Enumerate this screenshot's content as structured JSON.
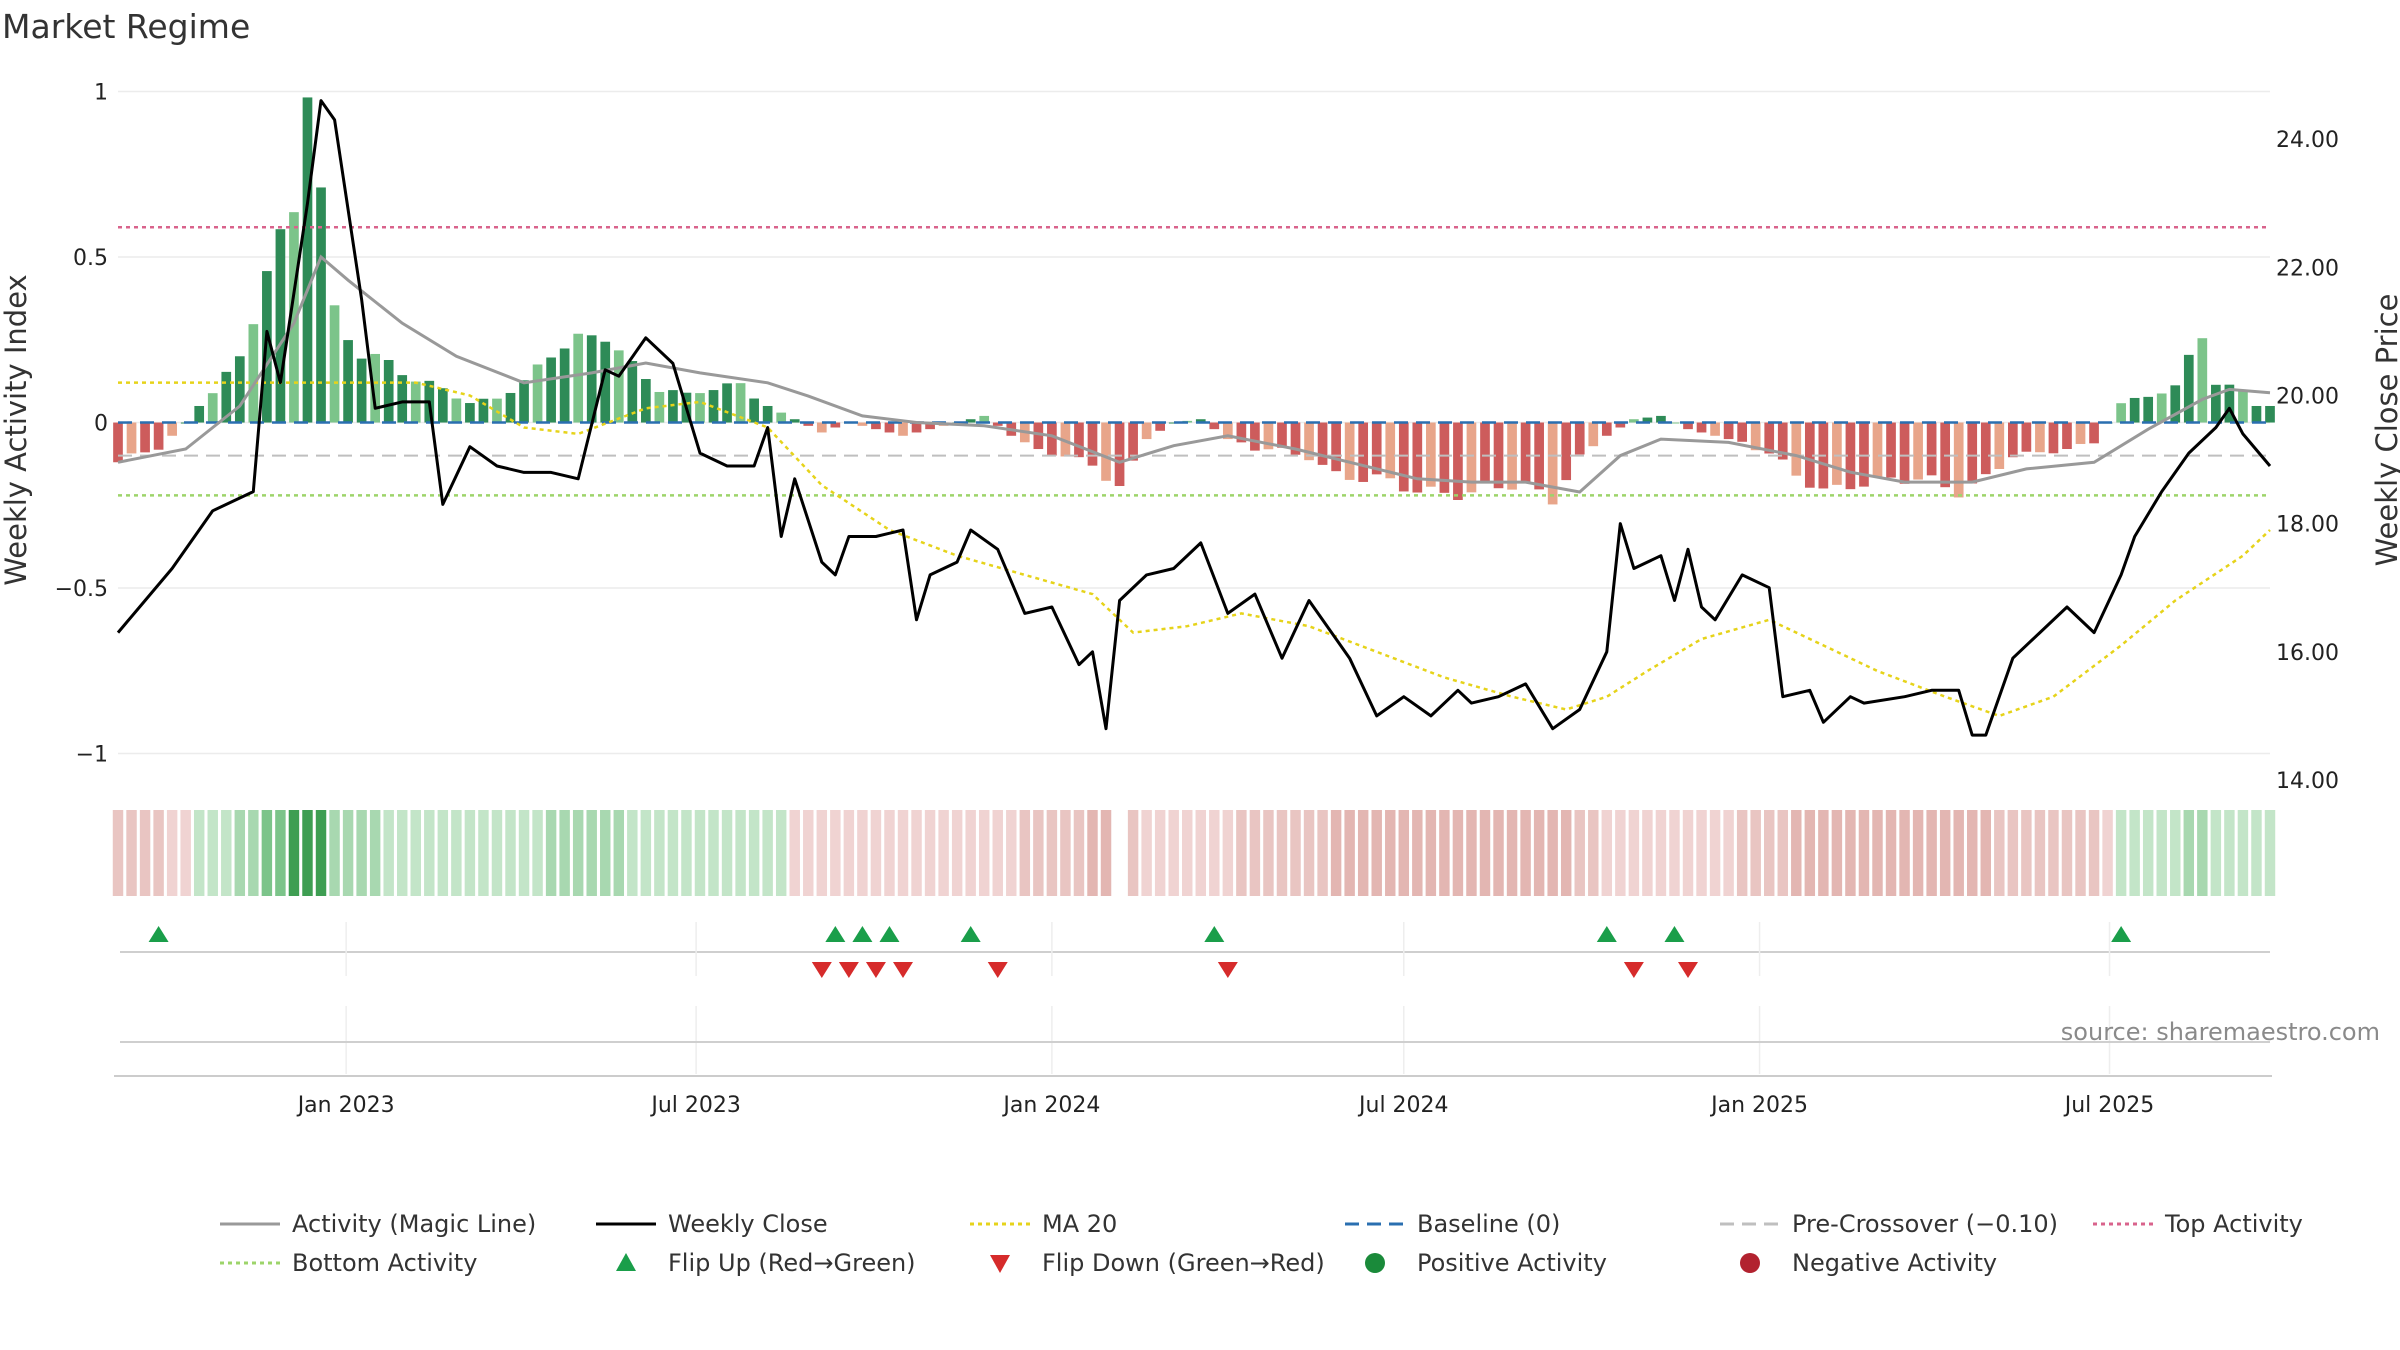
{
  "chart_data": {
    "type": "bar",
    "title": "Market Regime",
    "ylabel_left": "Weekly Activity Index",
    "ylabel_right": "Weekly Close Price",
    "source": "source: sharemaestro.com",
    "ylim_left": [
      -1.08,
      1.05
    ],
    "ylim_right": [
      14,
      25
    ],
    "yticks_left": [
      {
        "v": 1,
        "label": "1"
      },
      {
        "v": 0.5,
        "label": "0.5"
      },
      {
        "v": 0,
        "label": "0"
      },
      {
        "v": -0.5,
        "label": "−0.5"
      },
      {
        "v": -1,
        "label": "−1"
      }
    ],
    "yticks_right": [
      {
        "v": 24,
        "label": "24.00"
      },
      {
        "v": 22,
        "label": "22.00"
      },
      {
        "v": 20,
        "label": "20.00"
      },
      {
        "v": 18,
        "label": "18.00"
      },
      {
        "v": 16,
        "label": "16.00"
      },
      {
        "v": 14,
        "label": "14.00"
      }
    ],
    "x_start": "2022-09-05",
    "x_end": "2025-09-22",
    "xticks": [
      {
        "date": "2023-01-01",
        "label": "Jan 2023"
      },
      {
        "date": "2023-07-01",
        "label": "Jul 2023"
      },
      {
        "date": "2024-01-01",
        "label": "Jan 2024"
      },
      {
        "date": "2024-07-01",
        "label": "Jul 2024"
      },
      {
        "date": "2025-01-01",
        "label": "Jan 2025"
      },
      {
        "date": "2025-07-01",
        "label": "Jul 2025"
      }
    ],
    "top_activity": 0.59,
    "bottom_activity": -0.22,
    "pre_crossover": -0.1,
    "baseline": 0,
    "activity_anchors": [
      [
        "2022-09-05",
        -0.12
      ],
      [
        "2022-09-26",
        -0.08
      ],
      [
        "2022-10-10",
        0.0
      ],
      [
        "2022-10-24",
        0.1
      ],
      [
        "2022-11-07",
        0.2
      ],
      [
        "2022-11-21",
        0.45
      ],
      [
        "2022-12-05",
        0.62
      ],
      [
        "2022-12-12",
        1.0
      ],
      [
        "2022-12-19",
        0.7
      ],
      [
        "2022-12-26",
        0.34
      ],
      [
        "2023-01-09",
        0.22
      ],
      [
        "2023-01-23",
        0.18
      ],
      [
        "2023-02-06",
        0.12
      ],
      [
        "2023-02-20",
        0.1
      ],
      [
        "2023-03-06",
        0.06
      ],
      [
        "2023-03-20",
        0.08
      ],
      [
        "2023-04-03",
        0.12
      ],
      [
        "2023-04-17",
        0.2
      ],
      [
        "2023-05-01",
        0.24
      ],
      [
        "2023-05-15",
        0.28
      ],
      [
        "2023-05-29",
        0.18
      ],
      [
        "2023-06-12",
        0.1
      ],
      [
        "2023-06-26",
        0.08
      ],
      [
        "2023-07-10",
        0.1
      ],
      [
        "2023-07-24",
        0.12
      ],
      [
        "2023-08-07",
        0.05
      ],
      [
        "2023-08-21",
        0.01
      ],
      [
        "2023-09-04",
        -0.03
      ],
      [
        "2023-09-18",
        0.0
      ],
      [
        "2023-10-02",
        -0.02
      ],
      [
        "2023-10-16",
        -0.04
      ],
      [
        "2023-10-30",
        -0.02
      ],
      [
        "2023-11-13",
        0.0
      ],
      [
        "2023-11-27",
        0.02
      ],
      [
        "2023-12-11",
        -0.04
      ],
      [
        "2023-12-25",
        -0.08
      ],
      [
        "2024-01-08",
        -0.1
      ],
      [
        "2024-01-22",
        -0.14
      ],
      [
        "2024-02-05",
        -0.2
      ],
      [
        "2024-02-19",
        -0.05
      ],
      [
        "2024-03-04",
        0.0
      ],
      [
        "2024-03-18",
        0.01
      ],
      [
        "2024-04-01",
        -0.05
      ],
      [
        "2024-04-15",
        -0.08
      ],
      [
        "2024-04-29",
        -0.08
      ],
      [
        "2024-05-13",
        -0.1
      ],
      [
        "2024-05-27",
        -0.16
      ],
      [
        "2024-06-10",
        -0.18
      ],
      [
        "2024-06-24",
        -0.18
      ],
      [
        "2024-07-08",
        -0.2
      ],
      [
        "2024-07-22",
        -0.2
      ],
      [
        "2024-08-05",
        -0.22
      ],
      [
        "2024-08-19",
        -0.2
      ],
      [
        "2024-09-02",
        -0.2
      ],
      [
        "2024-09-16",
        -0.22
      ],
      [
        "2024-09-30",
        -0.1
      ],
      [
        "2024-10-14",
        -0.04
      ],
      [
        "2024-10-28",
        0.01
      ],
      [
        "2024-11-11",
        0.02
      ],
      [
        "2024-11-25",
        -0.02
      ],
      [
        "2024-12-09",
        -0.04
      ],
      [
        "2024-12-23",
        -0.06
      ],
      [
        "2025-01-06",
        -0.1
      ],
      [
        "2025-01-20",
        -0.16
      ],
      [
        "2025-02-03",
        -0.2
      ],
      [
        "2025-02-17",
        -0.18
      ],
      [
        "2025-03-03",
        -0.18
      ],
      [
        "2025-03-17",
        -0.18
      ],
      [
        "2025-03-31",
        -0.18
      ],
      [
        "2025-04-14",
        -0.2
      ],
      [
        "2025-04-28",
        -0.16
      ],
      [
        "2025-05-12",
        -0.1
      ],
      [
        "2025-05-26",
        -0.1
      ],
      [
        "2025-06-09",
        -0.08
      ],
      [
        "2025-06-23",
        -0.06
      ],
      [
        "2025-07-07",
        0.06
      ],
      [
        "2025-07-21",
        0.08
      ],
      [
        "2025-08-04",
        0.1
      ],
      [
        "2025-08-18",
        0.27
      ],
      [
        "2025-08-25",
        0.12
      ],
      [
        "2025-09-08",
        0.1
      ],
      [
        "2025-09-15",
        0.05
      ]
    ],
    "magic_anchors": [
      [
        "2022-09-05",
        -0.12
      ],
      [
        "2022-10-10",
        -0.08
      ],
      [
        "2022-11-07",
        0.05
      ],
      [
        "2022-12-05",
        0.3
      ],
      [
        "2022-12-19",
        0.5
      ],
      [
        "2023-01-02",
        0.43
      ],
      [
        "2023-01-30",
        0.3
      ],
      [
        "2023-02-27",
        0.2
      ],
      [
        "2023-04-03",
        0.12
      ],
      [
        "2023-05-08",
        0.15
      ],
      [
        "2023-06-05",
        0.18
      ],
      [
        "2023-07-03",
        0.15
      ],
      [
        "2023-08-07",
        0.12
      ],
      [
        "2023-08-28",
        0.08
      ],
      [
        "2023-09-25",
        0.02
      ],
      [
        "2023-10-23",
        0.0
      ],
      [
        "2023-11-27",
        -0.01
      ],
      [
        "2024-01-01",
        -0.04
      ],
      [
        "2024-02-05",
        -0.12
      ],
      [
        "2024-03-04",
        -0.07
      ],
      [
        "2024-04-01",
        -0.04
      ],
      [
        "2024-05-06",
        -0.08
      ],
      [
        "2024-06-10",
        -0.13
      ],
      [
        "2024-07-08",
        -0.17
      ],
      [
        "2024-08-05",
        -0.18
      ],
      [
        "2024-09-02",
        -0.18
      ],
      [
        "2024-09-30",
        -0.21
      ],
      [
        "2024-10-21",
        -0.1
      ],
      [
        "2024-11-11",
        -0.05
      ],
      [
        "2024-12-16",
        -0.06
      ],
      [
        "2025-01-20",
        -0.1
      ],
      [
        "2025-02-17",
        -0.15
      ],
      [
        "2025-03-17",
        -0.18
      ],
      [
        "2025-04-21",
        -0.18
      ],
      [
        "2025-05-19",
        -0.14
      ],
      [
        "2025-06-23",
        -0.12
      ],
      [
        "2025-07-21",
        -0.02
      ],
      [
        "2025-08-18",
        0.07
      ],
      [
        "2025-09-01",
        0.1
      ],
      [
        "2025-09-22",
        0.09
      ]
    ],
    "close_anchors": [
      [
        "2022-09-05",
        16.3
      ],
      [
        "2022-09-19",
        16.8
      ],
      [
        "2022-10-03",
        17.3
      ],
      [
        "2022-10-24",
        18.2
      ],
      [
        "2022-11-14",
        18.5
      ],
      [
        "2022-11-21",
        21.0
      ],
      [
        "2022-11-28",
        20.2
      ],
      [
        "2022-12-12",
        23.0
      ],
      [
        "2022-12-19",
        24.6
      ],
      [
        "2022-12-26",
        24.3
      ],
      [
        "2023-01-09",
        21.5
      ],
      [
        "2023-01-16",
        19.8
      ],
      [
        "2023-01-30",
        19.9
      ],
      [
        "2023-02-13",
        19.9
      ],
      [
        "2023-02-20",
        18.3
      ],
      [
        "2023-03-06",
        19.2
      ],
      [
        "2023-03-20",
        18.9
      ],
      [
        "2023-04-03",
        18.8
      ],
      [
        "2023-04-17",
        18.8
      ],
      [
        "2023-05-01",
        18.7
      ],
      [
        "2023-05-15",
        20.4
      ],
      [
        "2023-05-22",
        20.3
      ],
      [
        "2023-06-05",
        20.9
      ],
      [
        "2023-06-19",
        20.5
      ],
      [
        "2023-07-03",
        19.1
      ],
      [
        "2023-07-17",
        18.9
      ],
      [
        "2023-07-31",
        18.9
      ],
      [
        "2023-08-07",
        19.5
      ],
      [
        "2023-08-14",
        17.8
      ],
      [
        "2023-08-21",
        18.7
      ],
      [
        "2023-09-04",
        17.4
      ],
      [
        "2023-09-11",
        17.2
      ],
      [
        "2023-09-18",
        17.8
      ],
      [
        "2023-10-02",
        17.8
      ],
      [
        "2023-10-16",
        17.9
      ],
      [
        "2023-10-23",
        16.5
      ],
      [
        "2023-10-30",
        17.2
      ],
      [
        "2023-11-13",
        17.4
      ],
      [
        "2023-11-20",
        17.9
      ],
      [
        "2023-12-04",
        17.6
      ],
      [
        "2023-12-18",
        16.6
      ],
      [
        "2024-01-01",
        16.7
      ],
      [
        "2024-01-15",
        15.8
      ],
      [
        "2024-01-22",
        16.0
      ],
      [
        "2024-01-29",
        14.8
      ],
      [
        "2024-02-05",
        16.8
      ],
      [
        "2024-02-19",
        17.2
      ],
      [
        "2024-03-04",
        17.3
      ],
      [
        "2024-03-18",
        17.7
      ],
      [
        "2024-04-01",
        16.6
      ],
      [
        "2024-04-15",
        16.9
      ],
      [
        "2024-04-29",
        15.9
      ],
      [
        "2024-05-13",
        16.8
      ],
      [
        "2024-06-03",
        15.9
      ],
      [
        "2024-06-17",
        15.0
      ],
      [
        "2024-07-01",
        15.3
      ],
      [
        "2024-07-15",
        15.0
      ],
      [
        "2024-07-29",
        15.4
      ],
      [
        "2024-08-05",
        15.2
      ],
      [
        "2024-08-19",
        15.3
      ],
      [
        "2024-09-02",
        15.5
      ],
      [
        "2024-09-16",
        14.8
      ],
      [
        "2024-09-30",
        15.1
      ],
      [
        "2024-10-14",
        16.0
      ],
      [
        "2024-10-21",
        18.0
      ],
      [
        "2024-10-28",
        17.3
      ],
      [
        "2024-11-11",
        17.5
      ],
      [
        "2024-11-18",
        16.8
      ],
      [
        "2024-11-25",
        17.6
      ],
      [
        "2024-12-02",
        16.7
      ],
      [
        "2024-12-09",
        16.5
      ],
      [
        "2024-12-23",
        17.2
      ],
      [
        "2025-01-06",
        17.0
      ],
      [
        "2025-01-13",
        15.3
      ],
      [
        "2025-01-27",
        15.4
      ],
      [
        "2025-02-03",
        14.9
      ],
      [
        "2025-02-17",
        15.3
      ],
      [
        "2025-02-24",
        15.2
      ],
      [
        "2025-03-17",
        15.3
      ],
      [
        "2025-03-31",
        15.4
      ],
      [
        "2025-04-14",
        15.4
      ],
      [
        "2025-04-21",
        14.7
      ],
      [
        "2025-04-28",
        14.7
      ],
      [
        "2025-05-12",
        15.9
      ],
      [
        "2025-05-26",
        16.3
      ],
      [
        "2025-06-09",
        16.7
      ],
      [
        "2025-06-23",
        16.3
      ],
      [
        "2025-07-07",
        17.2
      ],
      [
        "2025-07-14",
        17.8
      ],
      [
        "2025-07-28",
        18.5
      ],
      [
        "2025-08-11",
        19.1
      ],
      [
        "2025-08-25",
        19.5
      ],
      [
        "2025-09-01",
        19.8
      ],
      [
        "2025-09-08",
        19.4
      ],
      [
        "2025-09-22",
        18.9
      ]
    ],
    "ma_anchors": [
      [
        "2022-09-05",
        20.2
      ],
      [
        "2023-02-06",
        20.2
      ],
      [
        "2023-03-06",
        20.0
      ],
      [
        "2023-04-03",
        19.5
      ],
      [
        "2023-05-01",
        19.4
      ],
      [
        "2023-06-05",
        19.8
      ],
      [
        "2023-07-03",
        19.9
      ],
      [
        "2023-08-07",
        19.5
      ],
      [
        "2023-09-04",
        18.6
      ],
      [
        "2023-10-09",
        17.9
      ],
      [
        "2023-11-13",
        17.5
      ],
      [
        "2023-12-18",
        17.2
      ],
      [
        "2024-01-22",
        16.9
      ],
      [
        "2024-02-12",
        16.3
      ],
      [
        "2024-03-11",
        16.4
      ],
      [
        "2024-04-08",
        16.6
      ],
      [
        "2024-05-13",
        16.4
      ],
      [
        "2024-06-17",
        16.0
      ],
      [
        "2024-07-22",
        15.6
      ],
      [
        "2024-08-26",
        15.3
      ],
      [
        "2024-09-23",
        15.1
      ],
      [
        "2024-10-14",
        15.3
      ],
      [
        "2024-11-04",
        15.7
      ],
      [
        "2024-12-02",
        16.2
      ],
      [
        "2025-01-06",
        16.5
      ],
      [
        "2025-02-03",
        16.1
      ],
      [
        "2025-03-03",
        15.7
      ],
      [
        "2025-04-07",
        15.3
      ],
      [
        "2025-05-05",
        15.0
      ],
      [
        "2025-06-02",
        15.3
      ],
      [
        "2025-07-07",
        16.1
      ],
      [
        "2025-08-04",
        16.8
      ],
      [
        "2025-09-08",
        17.5
      ],
      [
        "2025-09-22",
        17.9
      ]
    ],
    "flip_up_dates": [
      "2022-09-26",
      "2023-09-11",
      "2023-09-25",
      "2023-10-09",
      "2023-11-20",
      "2024-03-25",
      "2024-10-14",
      "2024-11-18",
      "2025-07-07"
    ],
    "flip_down_dates": [
      "2023-09-04",
      "2023-09-18",
      "2023-10-02",
      "2023-10-16",
      "2023-12-04",
      "2024-04-01",
      "2024-10-28",
      "2024-11-25"
    ],
    "heat_gap_date": "2024-02-05",
    "legend": [
      {
        "label": "Activity (Magic Line)",
        "kind": "line",
        "color": "#999999",
        "dash": ""
      },
      {
        "label": "Weekly Close",
        "kind": "line",
        "color": "#000000",
        "dash": ""
      },
      {
        "label": "MA 20",
        "kind": "line",
        "color": "#e6d31a",
        "dash": "4,4"
      },
      {
        "label": "Baseline (0)",
        "kind": "line",
        "color": "#2a6fb0",
        "dash": "14,8"
      },
      {
        "label": "Pre-Crossover (−0.10)",
        "kind": "line",
        "color": "#bfbfbf",
        "dash": "14,8"
      },
      {
        "label": "Top Activity",
        "kind": "line",
        "color": "#d9638c",
        "dash": "4,4"
      },
      {
        "label": "Bottom Activity",
        "kind": "line",
        "color": "#9dd46a",
        "dash": "4,4"
      },
      {
        "label": "Flip Up (Red→Green)",
        "kind": "tri-up",
        "color": "#1a9e4a",
        "dash": ""
      },
      {
        "label": "Flip Down (Green→Red)",
        "kind": "tri-down",
        "color": "#d62b2b",
        "dash": ""
      },
      {
        "label": "Positive Activity",
        "kind": "dot",
        "color": "#1a8a3a",
        "dash": ""
      },
      {
        "label": "Negative Activity",
        "kind": "dot",
        "color": "#b2222f",
        "dash": ""
      }
    ]
  }
}
